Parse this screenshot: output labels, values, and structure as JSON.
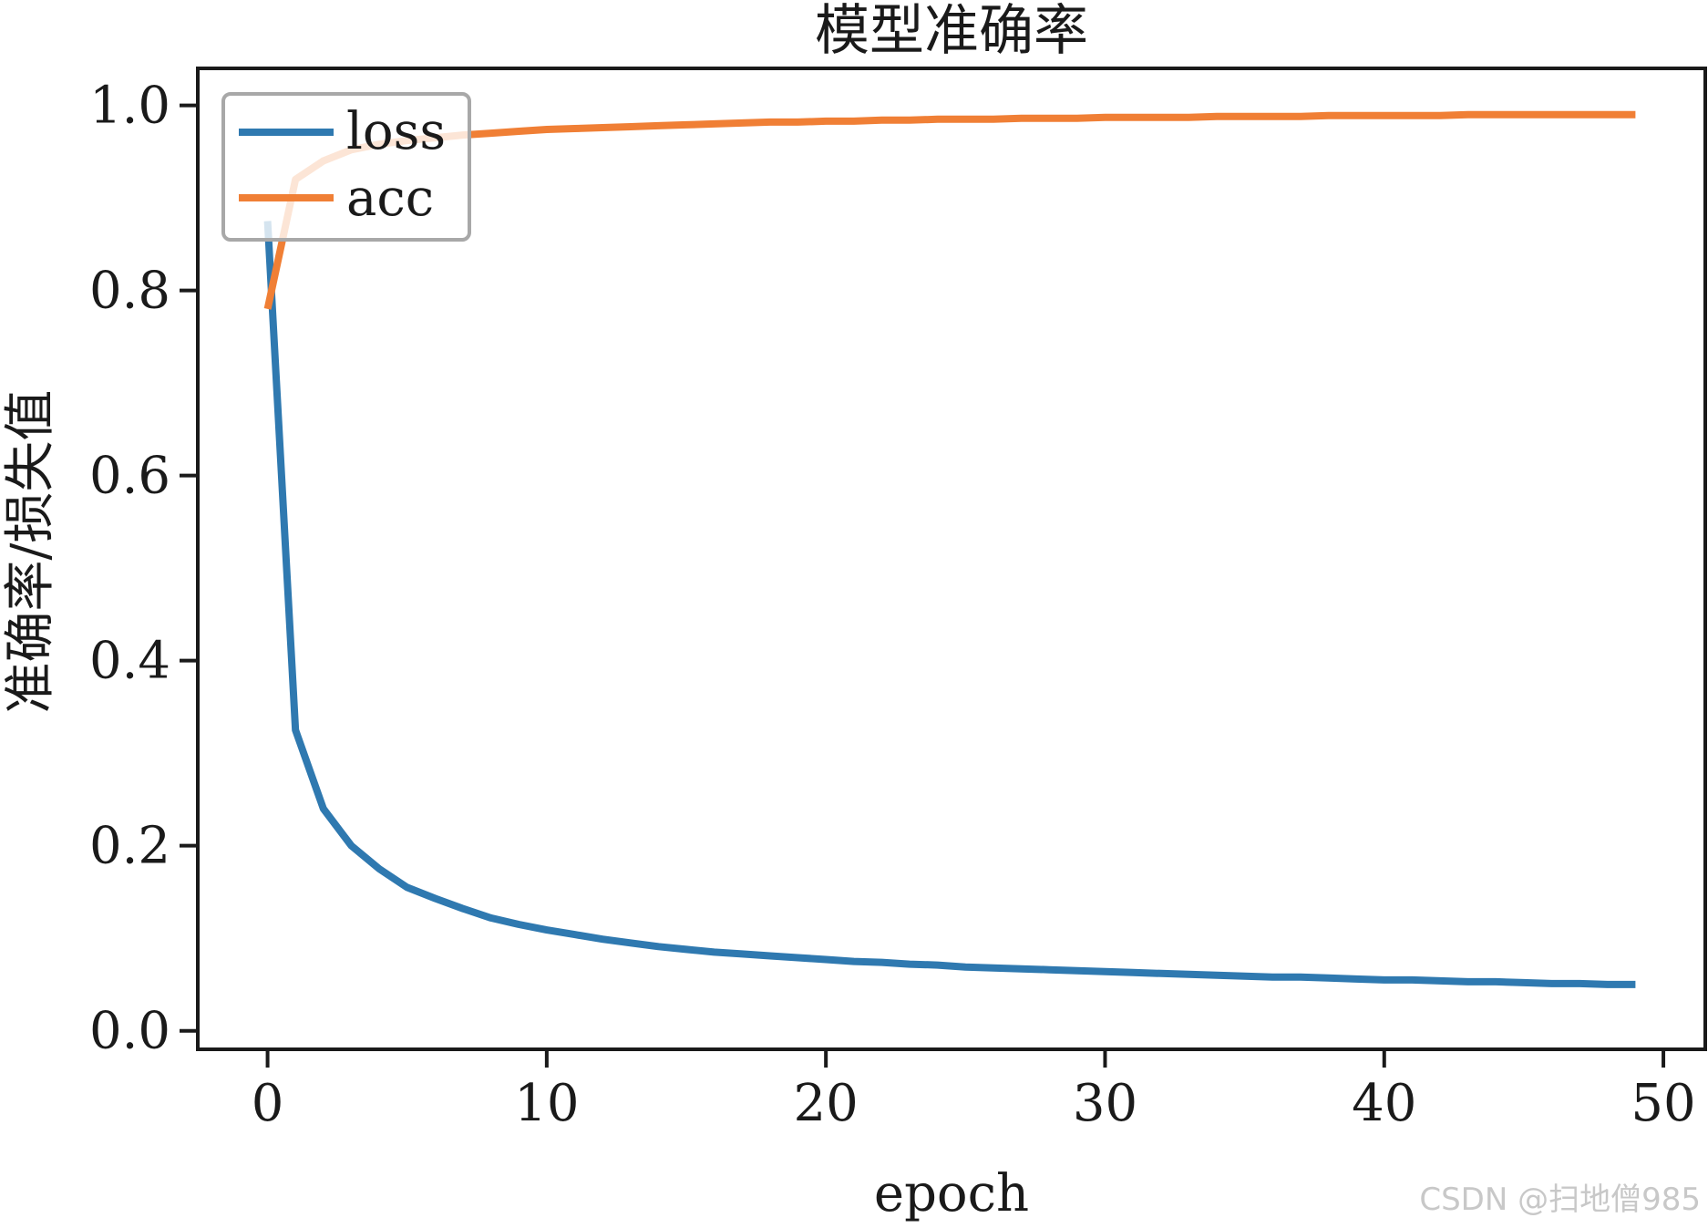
{
  "chart_data": {
    "type": "line",
    "title": "模型准确率",
    "xlabel": "epoch",
    "ylabel": "准确率/损失值",
    "xlim": [
      -2.5,
      51.5
    ],
    "ylim": [
      -0.02,
      1.04
    ],
    "x_ticks": [
      "0",
      "10",
      "20",
      "30",
      "40",
      "50"
    ],
    "x_tick_values": [
      0,
      10,
      20,
      30,
      40,
      50
    ],
    "y_ticks": [
      "0.0",
      "0.2",
      "0.4",
      "0.6",
      "0.8",
      "1.0"
    ],
    "y_tick_values": [
      0.0,
      0.2,
      0.4,
      0.6,
      0.8,
      1.0
    ],
    "legend_position": "upper-left",
    "grid": false,
    "x": [
      0,
      1,
      2,
      3,
      4,
      5,
      6,
      7,
      8,
      9,
      10,
      11,
      12,
      13,
      14,
      15,
      16,
      17,
      18,
      19,
      20,
      21,
      22,
      23,
      24,
      25,
      26,
      27,
      28,
      29,
      30,
      31,
      32,
      33,
      34,
      35,
      36,
      37,
      38,
      39,
      40,
      41,
      42,
      43,
      44,
      45,
      46,
      47,
      48,
      49
    ],
    "series": [
      {
        "name": "loss",
        "color": "#2f79b0",
        "values": [
          0.875,
          0.325,
          0.24,
          0.2,
          0.175,
          0.155,
          0.143,
          0.132,
          0.122,
          0.115,
          0.109,
          0.104,
          0.099,
          0.095,
          0.091,
          0.088,
          0.085,
          0.083,
          0.081,
          0.079,
          0.077,
          0.075,
          0.074,
          0.072,
          0.071,
          0.069,
          0.068,
          0.067,
          0.066,
          0.065,
          0.064,
          0.063,
          0.062,
          0.061,
          0.06,
          0.059,
          0.058,
          0.058,
          0.057,
          0.056,
          0.055,
          0.055,
          0.054,
          0.053,
          0.053,
          0.052,
          0.051,
          0.051,
          0.05,
          0.05
        ]
      },
      {
        "name": "acc",
        "color": "#f07f35",
        "values": [
          0.78,
          0.92,
          0.94,
          0.952,
          0.958,
          0.962,
          0.965,
          0.968,
          0.97,
          0.972,
          0.974,
          0.975,
          0.976,
          0.977,
          0.978,
          0.979,
          0.98,
          0.981,
          0.982,
          0.982,
          0.983,
          0.983,
          0.984,
          0.984,
          0.985,
          0.985,
          0.985,
          0.986,
          0.986,
          0.986,
          0.987,
          0.987,
          0.987,
          0.987,
          0.988,
          0.988,
          0.988,
          0.988,
          0.989,
          0.989,
          0.989,
          0.989,
          0.989,
          0.99,
          0.99,
          0.99,
          0.99,
          0.99,
          0.99,
          0.99
        ]
      }
    ]
  },
  "watermark": "CSDN @扫地僧985"
}
